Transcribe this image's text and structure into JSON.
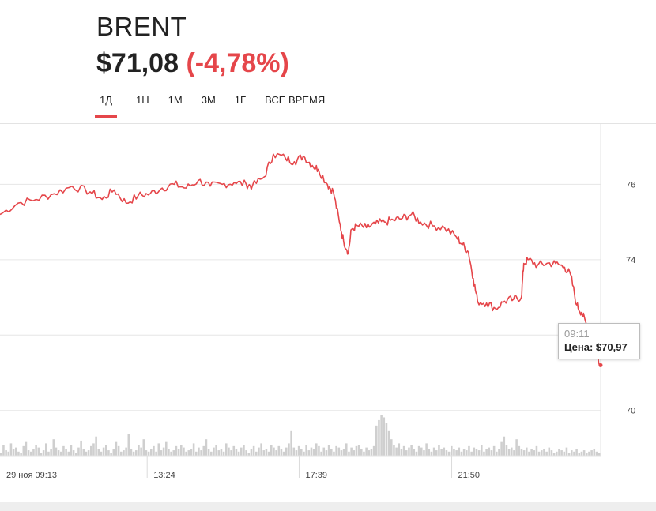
{
  "header": {
    "ticker": "BRENT",
    "price": "$71,08",
    "change": "(-4,78%)"
  },
  "tabs": [
    {
      "label": "1Д",
      "active": true
    },
    {
      "label": "1Н",
      "active": false
    },
    {
      "label": "1М",
      "active": false
    },
    {
      "label": "3М",
      "active": false
    },
    {
      "label": "1Г",
      "active": false
    },
    {
      "label": "ВСЕ ВРЕМЯ",
      "active": false
    }
  ],
  "tooltip": {
    "time": "09:11",
    "price_label": "Цена:",
    "price_value": "$70,97"
  },
  "colors": {
    "line": "#e5464a",
    "volume": "#cfcfcf",
    "grid": "#e6e6e6",
    "accent": "#e5464a"
  },
  "chart_data": {
    "type": "line",
    "ylim": [
      68.8,
      77.6
    ],
    "y_ticks": [
      {
        "value": 76,
        "label": "76"
      },
      {
        "value": 74,
        "label": "74"
      },
      {
        "value": 70,
        "label": "70"
      }
    ],
    "x_ticks": [
      {
        "position": 0.0,
        "label": "29 ноя 09:13"
      },
      {
        "position": 0.245,
        "label": "13:24"
      },
      {
        "position": 0.498,
        "label": "17:39"
      },
      {
        "position": 0.752,
        "label": "21:50"
      }
    ],
    "series": [
      {
        "points": [
          [
            0.0,
            75.2
          ],
          [
            0.03,
            75.5
          ],
          [
            0.06,
            75.6
          ],
          [
            0.09,
            75.75
          ],
          [
            0.12,
            75.95
          ],
          [
            0.15,
            75.8
          ],
          [
            0.17,
            75.6
          ],
          [
            0.19,
            75.85
          ],
          [
            0.21,
            75.5
          ],
          [
            0.23,
            75.7
          ],
          [
            0.25,
            75.75
          ],
          [
            0.27,
            75.9
          ],
          [
            0.29,
            76.0
          ],
          [
            0.31,
            75.9
          ],
          [
            0.33,
            76.1
          ],
          [
            0.35,
            75.95
          ],
          [
            0.37,
            76.0
          ],
          [
            0.39,
            76.05
          ],
          [
            0.41,
            76.0
          ],
          [
            0.42,
            75.95
          ],
          [
            0.44,
            76.2
          ],
          [
            0.455,
            76.8
          ],
          [
            0.475,
            76.7
          ],
          [
            0.49,
            76.6
          ],
          [
            0.505,
            76.75
          ],
          [
            0.52,
            76.5
          ],
          [
            0.53,
            76.4
          ],
          [
            0.545,
            76.0
          ],
          [
            0.555,
            75.8
          ],
          [
            0.565,
            75.0
          ],
          [
            0.572,
            74.5
          ],
          [
            0.58,
            74.2
          ],
          [
            0.585,
            74.8
          ],
          [
            0.595,
            74.9
          ],
          [
            0.61,
            74.85
          ],
          [
            0.625,
            74.95
          ],
          [
            0.64,
            75.0
          ],
          [
            0.655,
            75.05
          ],
          [
            0.67,
            75.1
          ],
          [
            0.685,
            75.2
          ],
          [
            0.7,
            75.0
          ],
          [
            0.72,
            74.9
          ],
          [
            0.74,
            74.85
          ],
          [
            0.76,
            74.6
          ],
          [
            0.77,
            74.4
          ],
          [
            0.78,
            74.2
          ],
          [
            0.788,
            73.5
          ],
          [
            0.795,
            72.9
          ],
          [
            0.81,
            72.85
          ],
          [
            0.825,
            72.7
          ],
          [
            0.84,
            72.9
          ],
          [
            0.855,
            72.95
          ],
          [
            0.868,
            73.0
          ],
          [
            0.872,
            73.9
          ],
          [
            0.88,
            74.0
          ],
          [
            0.895,
            73.85
          ],
          [
            0.91,
            73.9
          ],
          [
            0.925,
            73.9
          ],
          [
            0.94,
            73.8
          ],
          [
            0.95,
            73.6
          ],
          [
            0.96,
            72.8
          ],
          [
            0.968,
            72.6
          ],
          [
            0.975,
            72.35
          ],
          [
            0.982,
            72.0
          ],
          [
            0.99,
            71.7
          ],
          [
            1.0,
            71.2
          ]
        ]
      }
    ],
    "volume": [
      2,
      8,
      4,
      3,
      9,
      5,
      6,
      3,
      2,
      7,
      10,
      4,
      3,
      5,
      8,
      6,
      2,
      4,
      9,
      3,
      5,
      12,
      6,
      4,
      3,
      7,
      5,
      3,
      8,
      4,
      2,
      6,
      11,
      5,
      3,
      4,
      7,
      9,
      14,
      5,
      3,
      6,
      8,
      4,
      2,
      5,
      10,
      7,
      3,
      4,
      6,
      16,
      5,
      3,
      4,
      8,
      6,
      12,
      4,
      3,
      5,
      7,
      3,
      9,
      4,
      6,
      10,
      5,
      3,
      4,
      7,
      5,
      8,
      6,
      3,
      4,
      5,
      9,
      3,
      6,
      4,
      7,
      12,
      5,
      3,
      6,
      8,
      4,
      5,
      3,
      9,
      6,
      4,
      7,
      5,
      3,
      6,
      8,
      4,
      2,
      5,
      7,
      3,
      6,
      9,
      4,
      5,
      3,
      8,
      6,
      4,
      7,
      5,
      3,
      6,
      9,
      18,
      6,
      4,
      7,
      5,
      3,
      8,
      4,
      6,
      5,
      9,
      7,
      3,
      6,
      4,
      8,
      5,
      3,
      7,
      6,
      4,
      5,
      9,
      3,
      6,
      4,
      7,
      8,
      5,
      3,
      6,
      4,
      5,
      7,
      22,
      26,
      30,
      28,
      24,
      18,
      12,
      8,
      6,
      9,
      5,
      7,
      4,
      6,
      8,
      5,
      3,
      7,
      6,
      4,
      9,
      5,
      3,
      6,
      4,
      8,
      5,
      6,
      4,
      3,
      7,
      5,
      4,
      6,
      3,
      5,
      4,
      7,
      3,
      6,
      5,
      4,
      8,
      3,
      5,
      6,
      4,
      7,
      3,
      5,
      10,
      14,
      8,
      5,
      6,
      4,
      12,
      7,
      5,
      4,
      6,
      3,
      5,
      4,
      7,
      3,
      4,
      5,
      3,
      6,
      4,
      2,
      3,
      5,
      4,
      3,
      6,
      2,
      4,
      3,
      5,
      2,
      3,
      4,
      2,
      3,
      4,
      5,
      3,
      2
    ]
  }
}
